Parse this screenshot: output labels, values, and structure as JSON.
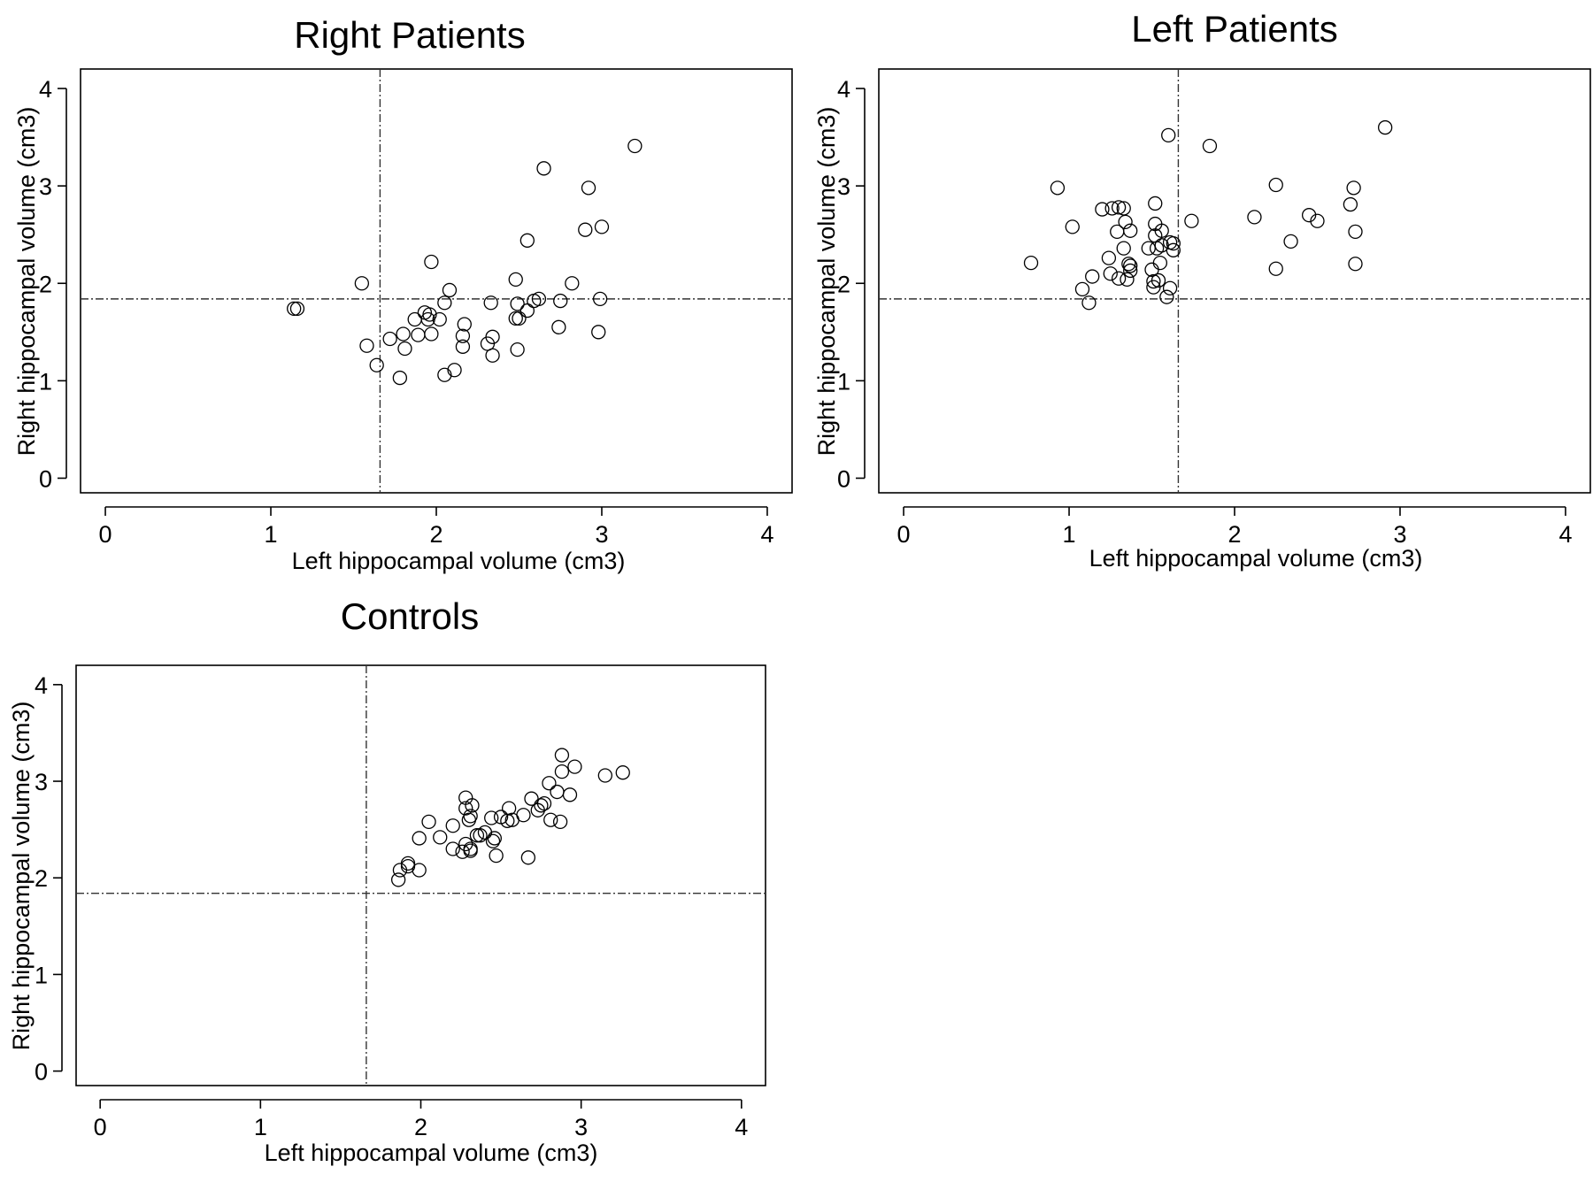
{
  "chart_data": [
    {
      "type": "scatter",
      "title": "Right Patients",
      "xlabel": "Left hippocampal volume (cm3)",
      "ylabel": "Right hippocampal volume (cm3)",
      "xlim": [
        -0.15,
        4.15
      ],
      "ylim": [
        -0.15,
        4.2
      ],
      "xticks": [
        "0",
        "1",
        "2",
        "3",
        "4"
      ],
      "yticks": [
        "0",
        "1",
        "2",
        "3",
        "4"
      ],
      "reference_lines": {
        "x": 1.66,
        "y": 1.84
      },
      "x": [
        1.14,
        1.16,
        1.55,
        1.58,
        1.64,
        1.72,
        1.78,
        1.8,
        1.81,
        1.87,
        1.89,
        1.93,
        1.95,
        1.96,
        1.97,
        1.97,
        2.02,
        2.05,
        2.05,
        2.08,
        2.11,
        2.16,
        2.16,
        2.17,
        2.31,
        2.33,
        2.34,
        2.34,
        2.48,
        2.48,
        2.49,
        2.5,
        2.49,
        2.55,
        2.55,
        2.59,
        2.62,
        2.65,
        2.74,
        2.75,
        2.82,
        2.9,
        2.92,
        2.98,
        2.99,
        3.0,
        3.2
      ],
      "y": [
        1.74,
        1.74,
        2.0,
        1.36,
        1.16,
        1.43,
        1.03,
        1.48,
        1.33,
        1.63,
        1.47,
        1.7,
        1.63,
        1.68,
        1.48,
        2.22,
        1.63,
        1.8,
        1.06,
        1.93,
        1.11,
        1.46,
        1.35,
        1.58,
        1.38,
        1.8,
        1.26,
        1.45,
        1.64,
        2.04,
        1.32,
        1.64,
        1.79,
        1.72,
        2.44,
        1.82,
        1.84,
        3.18,
        1.55,
        1.82,
        2.0,
        2.55,
        2.98,
        1.5,
        1.84,
        2.58,
        3.41
      ]
    },
    {
      "type": "scatter",
      "title": "Left Patients",
      "xlabel": "Left hippocampal volume (cm3)",
      "ylabel": "Right hippocampal volume (cm3)",
      "xlim": [
        -0.15,
        4.15
      ],
      "ylim": [
        -0.15,
        4.2
      ],
      "xticks": [
        "0",
        "1",
        "2",
        "3",
        "4"
      ],
      "yticks": [
        "0",
        "1",
        "2",
        "3",
        "4"
      ],
      "reference_lines": {
        "x": 1.66,
        "y": 1.84
      },
      "x": [
        0.77,
        0.93,
        1.02,
        1.08,
        1.12,
        1.14,
        1.2,
        1.24,
        1.25,
        1.26,
        1.29,
        1.3,
        1.3,
        1.33,
        1.33,
        1.34,
        1.35,
        1.36,
        1.37,
        1.37,
        1.37,
        1.48,
        1.5,
        1.51,
        1.51,
        1.52,
        1.52,
        1.52,
        1.53,
        1.54,
        1.55,
        1.56,
        1.56,
        1.59,
        1.6,
        1.61,
        1.61,
        1.63,
        1.63,
        1.74,
        1.85,
        2.12,
        2.25,
        2.25,
        2.34,
        2.45,
        2.5,
        2.7,
        2.72,
        2.73,
        2.73,
        2.91
      ],
      "y": [
        2.21,
        2.98,
        2.58,
        1.94,
        1.8,
        2.07,
        2.76,
        2.26,
        2.1,
        2.77,
        2.53,
        2.78,
        2.05,
        2.77,
        2.36,
        2.63,
        2.04,
        2.2,
        2.13,
        2.54,
        2.18,
        2.36,
        2.14,
        2.02,
        1.96,
        2.82,
        2.61,
        2.49,
        2.36,
        2.03,
        2.21,
        2.54,
        2.39,
        1.86,
        3.52,
        1.95,
        2.42,
        2.41,
        2.34,
        2.64,
        3.41,
        2.68,
        3.01,
        2.15,
        2.43,
        2.7,
        2.64,
        2.81,
        2.98,
        2.53,
        2.2,
        3.6
      ]
    },
    {
      "type": "scatter",
      "title": "Controls",
      "xlabel": "Left hippocampal volume (cm3)",
      "ylabel": "Right hippocampal volume (cm3)",
      "xlim": [
        -0.15,
        4.15
      ],
      "ylim": [
        -0.15,
        4.2
      ],
      "xticks": [
        "0",
        "1",
        "2",
        "3",
        "4"
      ],
      "yticks": [
        "0",
        "1",
        "2",
        "3",
        "4"
      ],
      "reference_lines": {
        "x": 1.66,
        "y": 1.84
      },
      "x": [
        1.86,
        1.87,
        1.92,
        1.92,
        1.99,
        1.99,
        2.05,
        2.12,
        2.2,
        2.2,
        2.26,
        2.28,
        2.28,
        2.28,
        2.3,
        2.31,
        2.31,
        2.31,
        2.32,
        2.35,
        2.37,
        2.4,
        2.44,
        2.45,
        2.46,
        2.47,
        2.5,
        2.54,
        2.55,
        2.57,
        2.64,
        2.67,
        2.69,
        2.73,
        2.75,
        2.77,
        2.8,
        2.81,
        2.85,
        2.87,
        2.88,
        2.88,
        2.93,
        2.96,
        3.15,
        3.26
      ],
      "y": [
        1.98,
        2.08,
        2.12,
        2.15,
        2.41,
        2.08,
        2.58,
        2.42,
        2.54,
        2.3,
        2.27,
        2.35,
        2.83,
        2.72,
        2.6,
        2.64,
        2.3,
        2.28,
        2.75,
        2.44,
        2.44,
        2.47,
        2.62,
        2.38,
        2.41,
        2.23,
        2.63,
        2.59,
        2.72,
        2.6,
        2.65,
        2.21,
        2.82,
        2.7,
        2.75,
        2.77,
        2.98,
        2.6,
        2.89,
        2.58,
        3.27,
        3.1,
        2.86,
        3.15,
        3.06,
        3.09
      ]
    }
  ]
}
